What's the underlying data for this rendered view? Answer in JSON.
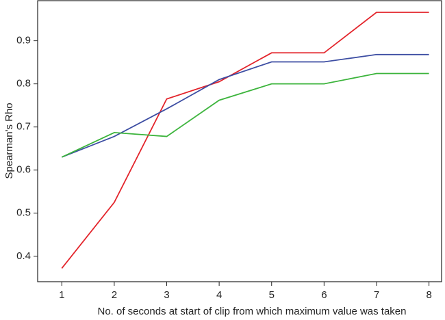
{
  "chart_data": {
    "type": "line",
    "x_label": "No. of seconds at start of clip from which maximum value was taken",
    "y_label": "Spearman's Rho",
    "x": [
      1,
      2,
      3,
      4,
      5,
      6,
      7,
      8
    ],
    "series": [
      {
        "color": "#e3242b",
        "values": [
          0.372,
          0.525,
          0.765,
          0.805,
          0.872,
          0.872,
          0.966,
          0.966
        ]
      },
      {
        "color": "#3d4ea3",
        "values": [
          0.63,
          0.678,
          0.742,
          0.81,
          0.851,
          0.851,
          0.868,
          0.868
        ]
      },
      {
        "color": "#3cb43c",
        "values": [
          0.63,
          0.687,
          0.678,
          0.762,
          0.8,
          0.8,
          0.824,
          0.824
        ]
      }
    ],
    "xlim": [
      0.54,
      8.24
    ],
    "ylim": [
      0.341,
      0.993
    ],
    "xticks": [
      1,
      2,
      3,
      4,
      5,
      6,
      7,
      8
    ],
    "yticks": [
      0.4,
      0.5,
      0.6,
      0.7,
      0.8,
      0.9
    ]
  }
}
